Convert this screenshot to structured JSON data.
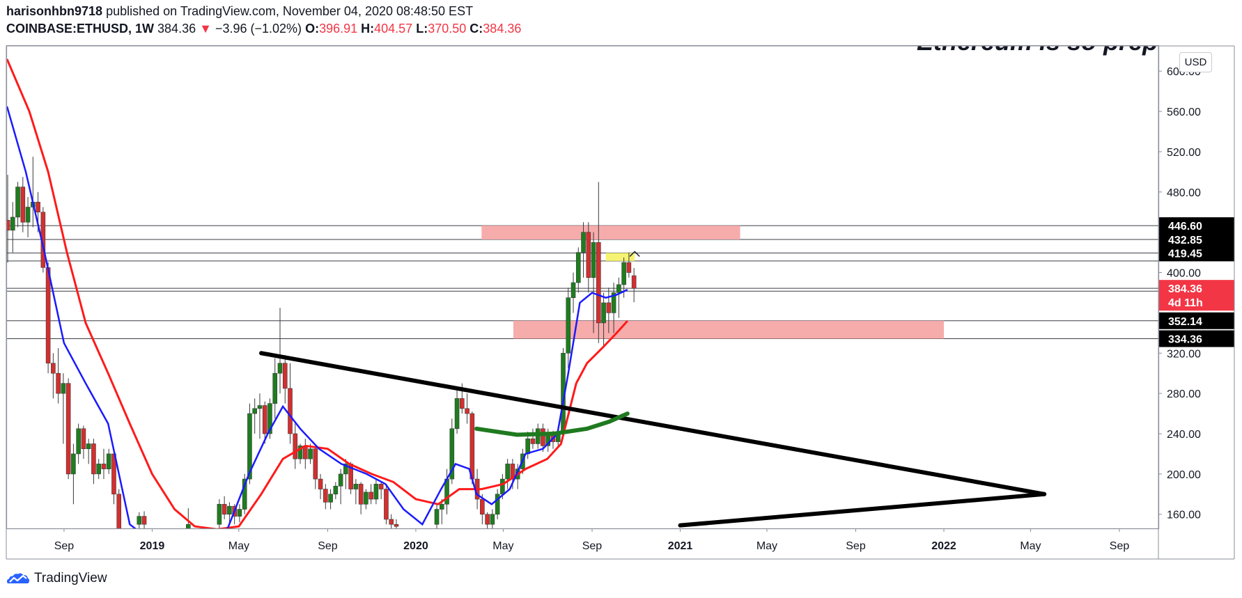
{
  "header": {
    "author": "harisonhbn9718",
    "published": "published on TradingView.com, November 04, 2020 08:48:50 EST",
    "symbol": "COINBASE:ETHUSD, 1W",
    "price": "384.36",
    "arrow": "▼",
    "change": "−3.96 (−1.02%)",
    "o_label": "O:",
    "o_val": "396.91",
    "h_label": "H:",
    "h_val": "404.57",
    "l_label": "L:",
    "l_val": "370.50",
    "c_label": "C:",
    "c_val": "384.36"
  },
  "currency_button": "USD",
  "footer": {
    "brand": "TradingView"
  },
  "colors": {
    "up": "#089981",
    "up_fill": "#1e7d1e",
    "down": "#d32f2f",
    "ema_fast": "#1a1aff",
    "ema_slow": "#ff1a1a",
    "zone": "#f7a8a8",
    "hl_yellow": "#f5f26a",
    "curve_green": "#1f7a1f"
  },
  "chart_data": {
    "type": "candlestick",
    "title": "Ethereum is so prep",
    "y_axis": {
      "range": [
        146,
        625
      ],
      "ticks": [
        "600.00",
        "560.00",
        "520.00",
        "480.00",
        "400.00",
        "320.00",
        "280.00",
        "240.00",
        "200.00",
        "160.00"
      ],
      "price_labels": [
        {
          "value": 446.6,
          "text": "446.60",
          "color": "#000000"
        },
        {
          "value": 432.85,
          "text": "432.85",
          "color": "#000000"
        },
        {
          "value": 419.45,
          "text": "419.45",
          "color": "#000000"
        },
        {
          "value": 384.36,
          "text": "384.36",
          "color": "#f23645"
        },
        {
          "value": 370.5,
          "text": "4d 11h",
          "color": "#f23645"
        },
        {
          "value": 352.14,
          "text": "352.14",
          "color": "#000000"
        },
        {
          "value": 334.36,
          "text": "334.36",
          "color": "#000000"
        }
      ],
      "horizontal_lines": [
        446.6,
        432.85,
        419.45,
        411.5,
        384.36,
        381.5,
        352.14,
        334.36
      ]
    },
    "x_axis": {
      "range": [
        "2018-06-14",
        "2022-10-25"
      ],
      "ticks": [
        {
          "label": "Sep",
          "date": "2018-09-01"
        },
        {
          "label": "2019",
          "date": "2019-01-01",
          "bold": true
        },
        {
          "label": "May",
          "date": "2019-05-01"
        },
        {
          "label": "Sep",
          "date": "2019-09-01"
        },
        {
          "label": "2020",
          "date": "2020-01-01",
          "bold": true
        },
        {
          "label": "May",
          "date": "2020-05-01"
        },
        {
          "label": "Sep",
          "date": "2020-09-01"
        },
        {
          "label": "2021",
          "date": "2021-01-01",
          "bold": true
        },
        {
          "label": "May",
          "date": "2021-05-01"
        },
        {
          "label": "Sep",
          "date": "2021-09-01"
        },
        {
          "label": "2022",
          "date": "2022-01-01",
          "bold": true
        },
        {
          "label": "May",
          "date": "2022-05-01"
        },
        {
          "label": "Sep",
          "date": "2022-09-01"
        }
      ]
    },
    "zones": [
      {
        "from": "2020-04-01",
        "to": "2021-03-25",
        "low": 432.85,
        "high": 446.6,
        "color": "zone"
      },
      {
        "from": "2020-05-15",
        "to": "2022-01-01",
        "low": 334.36,
        "high": 352.14,
        "color": "zone"
      },
      {
        "from": "2020-09-20",
        "to": "2020-10-30",
        "low": 411.5,
        "high": 419.45,
        "color": "hl_yellow"
      }
    ],
    "trendlines": [
      {
        "from": [
          "2019-06-01",
          320
        ],
        "to": [
          "2022-05-20",
          180
        ],
        "color": "#000000"
      },
      {
        "from": [
          "2021-01-01",
          149
        ],
        "to": [
          "2022-05-20",
          180
        ],
        "color": "#000000"
      }
    ],
    "curve": {
      "points": [
        [
          "2020-03-25",
          245
        ],
        [
          "2020-05-20",
          239
        ],
        [
          "2020-07-10",
          240
        ],
        [
          "2020-08-25",
          245
        ],
        [
          "2020-09-25",
          252
        ],
        [
          "2020-10-20",
          260
        ]
      ],
      "color": "curve_green"
    },
    "ema_fast": [
      [
        "2018-06-14",
        565
      ],
      [
        "2018-07-10",
        500
      ],
      [
        "2018-08-05",
        420
      ],
      [
        "2018-09-01",
        330
      ],
      [
        "2018-10-01",
        290
      ],
      [
        "2018-11-01",
        250
      ],
      [
        "2018-12-01",
        150
      ],
      [
        "2019-01-15",
        125
      ],
      [
        "2019-03-01",
        130
      ],
      [
        "2019-04-15",
        145
      ],
      [
        "2019-05-15",
        200
      ],
      [
        "2019-06-10",
        240
      ],
      [
        "2019-07-01",
        267
      ],
      [
        "2019-07-25",
        245
      ],
      [
        "2019-08-20",
        225
      ],
      [
        "2019-09-20",
        210
      ],
      [
        "2019-10-25",
        200
      ],
      [
        "2019-11-20",
        190
      ],
      [
        "2019-12-15",
        165
      ],
      [
        "2020-01-10",
        150
      ],
      [
        "2020-02-05",
        185
      ],
      [
        "2020-02-25",
        210
      ],
      [
        "2020-03-15",
        205
      ],
      [
        "2020-03-25",
        180
      ],
      [
        "2020-04-15",
        170
      ],
      [
        "2020-05-10",
        185
      ],
      [
        "2020-06-01",
        220
      ],
      [
        "2020-06-25",
        225
      ],
      [
        "2020-07-15",
        240
      ],
      [
        "2020-07-30",
        300
      ],
      [
        "2020-08-15",
        370
      ],
      [
        "2020-09-01",
        380
      ],
      [
        "2020-09-20",
        375
      ],
      [
        "2020-10-05",
        378
      ],
      [
        "2020-10-20",
        383
      ]
    ],
    "ema_slow": [
      [
        "2018-06-14",
        612
      ],
      [
        "2018-07-15",
        560
      ],
      [
        "2018-08-10",
        500
      ],
      [
        "2018-09-05",
        420
      ],
      [
        "2018-10-01",
        350
      ],
      [
        "2018-11-01",
        300
      ],
      [
        "2018-12-01",
        250
      ],
      [
        "2019-01-01",
        200
      ],
      [
        "2019-02-01",
        165
      ],
      [
        "2019-03-01",
        148
      ],
      [
        "2019-04-01",
        145
      ],
      [
        "2019-05-01",
        148
      ],
      [
        "2019-06-01",
        180
      ],
      [
        "2019-07-01",
        215
      ],
      [
        "2019-08-01",
        228
      ],
      [
        "2019-09-01",
        225
      ],
      [
        "2019-10-01",
        210
      ],
      [
        "2019-11-01",
        200
      ],
      [
        "2019-12-01",
        192
      ],
      [
        "2020-01-01",
        175
      ],
      [
        "2020-02-01",
        170
      ],
      [
        "2020-03-01",
        185
      ],
      [
        "2020-04-01",
        185
      ],
      [
        "2020-05-01",
        190
      ],
      [
        "2020-06-01",
        205
      ],
      [
        "2020-07-01",
        215
      ],
      [
        "2020-07-20",
        230
      ],
      [
        "2020-08-10",
        290
      ],
      [
        "2020-08-25",
        310
      ],
      [
        "2020-09-15",
        325
      ],
      [
        "2020-10-05",
        340
      ],
      [
        "2020-10-20",
        352
      ]
    ],
    "candles": [
      {
        "t": "2018-06-15",
        "o": 452,
        "h": 497,
        "l": 410,
        "c": 442
      },
      {
        "t": "2018-06-22",
        "o": 442,
        "h": 470,
        "l": 420,
        "c": 455
      },
      {
        "t": "2018-06-29",
        "o": 455,
        "h": 490,
        "l": 445,
        "c": 485
      },
      {
        "t": "2018-07-06",
        "o": 485,
        "h": 495,
        "l": 440,
        "c": 450
      },
      {
        "t": "2018-07-13",
        "o": 450,
        "h": 475,
        "l": 435,
        "c": 465
      },
      {
        "t": "2018-07-20",
        "o": 465,
        "h": 515,
        "l": 445,
        "c": 470
      },
      {
        "t": "2018-07-27",
        "o": 470,
        "h": 480,
        "l": 440,
        "c": 460
      },
      {
        "t": "2018-08-03",
        "o": 460,
        "h": 465,
        "l": 400,
        "c": 405
      },
      {
        "t": "2018-08-10",
        "o": 405,
        "h": 410,
        "l": 300,
        "c": 310
      },
      {
        "t": "2018-08-17",
        "o": 310,
        "h": 320,
        "l": 275,
        "c": 300
      },
      {
        "t": "2018-08-24",
        "o": 300,
        "h": 325,
        "l": 270,
        "c": 280
      },
      {
        "t": "2018-08-31",
        "o": 280,
        "h": 300,
        "l": 230,
        "c": 290
      },
      {
        "t": "2018-09-07",
        "o": 290,
        "h": 295,
        "l": 195,
        "c": 200
      },
      {
        "t": "2018-09-14",
        "o": 200,
        "h": 230,
        "l": 170,
        "c": 220
      },
      {
        "t": "2018-09-21",
        "o": 220,
        "h": 250,
        "l": 210,
        "c": 245
      },
      {
        "t": "2018-09-28",
        "o": 245,
        "h": 248,
        "l": 215,
        "c": 225
      },
      {
        "t": "2018-10-05",
        "o": 225,
        "h": 235,
        "l": 210,
        "c": 230
      },
      {
        "t": "2018-10-12",
        "o": 230,
        "h": 235,
        "l": 190,
        "c": 200
      },
      {
        "t": "2018-10-19",
        "o": 200,
        "h": 215,
        "l": 195,
        "c": 210
      },
      {
        "t": "2018-10-26",
        "o": 210,
        "h": 225,
        "l": 195,
        "c": 205
      },
      {
        "t": "2018-11-02",
        "o": 205,
        "h": 225,
        "l": 200,
        "c": 220
      },
      {
        "t": "2018-11-09",
        "o": 220,
        "h": 222,
        "l": 170,
        "c": 180
      },
      {
        "t": "2018-11-16",
        "o": 180,
        "h": 185,
        "l": 130,
        "c": 140
      },
      {
        "t": "2018-12-14",
        "o": 150,
        "h": 162,
        "l": 140,
        "c": 158
      },
      {
        "t": "2018-12-21",
        "o": 158,
        "h": 163,
        "l": 145,
        "c": 150
      },
      {
        "t": "2019-02-20",
        "o": 135,
        "h": 166,
        "l": 130,
        "c": 150
      },
      {
        "t": "2019-04-04",
        "o": 150,
        "h": 175,
        "l": 145,
        "c": 170
      },
      {
        "t": "2019-04-11",
        "o": 170,
        "h": 178,
        "l": 155,
        "c": 160
      },
      {
        "t": "2019-04-18",
        "o": 160,
        "h": 172,
        "l": 150,
        "c": 168
      },
      {
        "t": "2019-04-25",
        "o": 168,
        "h": 170,
        "l": 150,
        "c": 158
      },
      {
        "t": "2019-05-02",
        "o": 158,
        "h": 170,
        "l": 152,
        "c": 165
      },
      {
        "t": "2019-05-09",
        "o": 165,
        "h": 200,
        "l": 160,
        "c": 195
      },
      {
        "t": "2019-05-16",
        "o": 195,
        "h": 270,
        "l": 190,
        "c": 260
      },
      {
        "t": "2019-05-23",
        "o": 260,
        "h": 275,
        "l": 240,
        "c": 265
      },
      {
        "t": "2019-05-30",
        "o": 265,
        "h": 280,
        "l": 235,
        "c": 268
      },
      {
        "t": "2019-06-06",
        "o": 268,
        "h": 272,
        "l": 230,
        "c": 240
      },
      {
        "t": "2019-06-13",
        "o": 240,
        "h": 275,
        "l": 235,
        "c": 270
      },
      {
        "t": "2019-06-20",
        "o": 270,
        "h": 315,
        "l": 255,
        "c": 300
      },
      {
        "t": "2019-06-27",
        "o": 300,
        "h": 365,
        "l": 280,
        "c": 310
      },
      {
        "t": "2019-07-04",
        "o": 310,
        "h": 318,
        "l": 270,
        "c": 285
      },
      {
        "t": "2019-07-11",
        "o": 285,
        "h": 310,
        "l": 230,
        "c": 240
      },
      {
        "t": "2019-07-18",
        "o": 240,
        "h": 250,
        "l": 205,
        "c": 215
      },
      {
        "t": "2019-07-25",
        "o": 215,
        "h": 230,
        "l": 210,
        "c": 228
      },
      {
        "t": "2019-08-01",
        "o": 228,
        "h": 235,
        "l": 205,
        "c": 215
      },
      {
        "t": "2019-08-08",
        "o": 215,
        "h": 230,
        "l": 210,
        "c": 225
      },
      {
        "t": "2019-08-15",
        "o": 225,
        "h": 228,
        "l": 185,
        "c": 195
      },
      {
        "t": "2019-08-22",
        "o": 195,
        "h": 200,
        "l": 175,
        "c": 185
      },
      {
        "t": "2019-08-29",
        "o": 185,
        "h": 190,
        "l": 165,
        "c": 172
      },
      {
        "t": "2019-09-05",
        "o": 172,
        "h": 185,
        "l": 165,
        "c": 180
      },
      {
        "t": "2019-09-12",
        "o": 180,
        "h": 192,
        "l": 175,
        "c": 188
      },
      {
        "t": "2019-09-19",
        "o": 188,
        "h": 205,
        "l": 170,
        "c": 200
      },
      {
        "t": "2019-09-26",
        "o": 200,
        "h": 215,
        "l": 185,
        "c": 210
      },
      {
        "t": "2019-10-03",
        "o": 210,
        "h": 212,
        "l": 180,
        "c": 185
      },
      {
        "t": "2019-10-10",
        "o": 185,
        "h": 195,
        "l": 170,
        "c": 190
      },
      {
        "t": "2019-10-17",
        "o": 190,
        "h": 192,
        "l": 160,
        "c": 170
      },
      {
        "t": "2019-10-24",
        "o": 170,
        "h": 185,
        "l": 165,
        "c": 182
      },
      {
        "t": "2019-10-31",
        "o": 182,
        "h": 190,
        "l": 170,
        "c": 175
      },
      {
        "t": "2019-11-07",
        "o": 175,
        "h": 195,
        "l": 170,
        "c": 190
      },
      {
        "t": "2019-11-14",
        "o": 190,
        "h": 192,
        "l": 175,
        "c": 185
      },
      {
        "t": "2019-11-21",
        "o": 185,
        "h": 190,
        "l": 150,
        "c": 155
      },
      {
        "t": "2019-11-28",
        "o": 155,
        "h": 160,
        "l": 145,
        "c": 150
      },
      {
        "t": "2019-12-05",
        "o": 150,
        "h": 155,
        "l": 140,
        "c": 148
      },
      {
        "t": "2020-01-30",
        "o": 150,
        "h": 170,
        "l": 145,
        "c": 165
      },
      {
        "t": "2020-02-06",
        "o": 165,
        "h": 175,
        "l": 150,
        "c": 170
      },
      {
        "t": "2020-02-13",
        "o": 170,
        "h": 205,
        "l": 160,
        "c": 195
      },
      {
        "t": "2020-02-20",
        "o": 195,
        "h": 255,
        "l": 190,
        "c": 245
      },
      {
        "t": "2020-02-27",
        "o": 245,
        "h": 285,
        "l": 240,
        "c": 275
      },
      {
        "t": "2020-03-05",
        "o": 275,
        "h": 290,
        "l": 260,
        "c": 265
      },
      {
        "t": "2020-03-12",
        "o": 265,
        "h": 280,
        "l": 250,
        "c": 260
      },
      {
        "t": "2020-03-19",
        "o": 260,
        "h": 262,
        "l": 190,
        "c": 195
      },
      {
        "t": "2020-03-26",
        "o": 195,
        "h": 205,
        "l": 165,
        "c": 175
      },
      {
        "t": "2020-04-02",
        "o": 175,
        "h": 180,
        "l": 150,
        "c": 160
      },
      {
        "t": "2020-04-09",
        "o": 160,
        "h": 162,
        "l": 140,
        "c": 150
      },
      {
        "t": "2020-04-16",
        "o": 150,
        "h": 165,
        "l": 140,
        "c": 160
      },
      {
        "t": "2020-04-23",
        "o": 160,
        "h": 185,
        "l": 155,
        "c": 180
      },
      {
        "t": "2020-04-30",
        "o": 180,
        "h": 200,
        "l": 175,
        "c": 195
      },
      {
        "t": "2020-05-07",
        "o": 195,
        "h": 215,
        "l": 185,
        "c": 210
      },
      {
        "t": "2020-05-14",
        "o": 210,
        "h": 215,
        "l": 185,
        "c": 195
      },
      {
        "t": "2020-05-21",
        "o": 195,
        "h": 210,
        "l": 185,
        "c": 205
      },
      {
        "t": "2020-05-28",
        "o": 205,
        "h": 225,
        "l": 200,
        "c": 220
      },
      {
        "t": "2020-06-04",
        "o": 220,
        "h": 242,
        "l": 215,
        "c": 235
      },
      {
        "t": "2020-06-11",
        "o": 235,
        "h": 245,
        "l": 225,
        "c": 230
      },
      {
        "t": "2020-06-18",
        "o": 230,
        "h": 250,
        "l": 225,
        "c": 245
      },
      {
        "t": "2020-06-25",
        "o": 245,
        "h": 250,
        "l": 222,
        "c": 228
      },
      {
        "t": "2020-07-02",
        "o": 228,
        "h": 245,
        "l": 222,
        "c": 240
      },
      {
        "t": "2020-07-09",
        "o": 240,
        "h": 243,
        "l": 225,
        "c": 232
      },
      {
        "t": "2020-07-16",
        "o": 232,
        "h": 245,
        "l": 228,
        "c": 240
      },
      {
        "t": "2020-07-23",
        "o": 240,
        "h": 325,
        "l": 235,
        "c": 320
      },
      {
        "t": "2020-07-30",
        "o": 320,
        "h": 385,
        "l": 305,
        "c": 375
      },
      {
        "t": "2020-08-06",
        "o": 375,
        "h": 400,
        "l": 360,
        "c": 390
      },
      {
        "t": "2020-08-13",
        "o": 390,
        "h": 425,
        "l": 380,
        "c": 420
      },
      {
        "t": "2020-08-20",
        "o": 420,
        "h": 450,
        "l": 395,
        "c": 440
      },
      {
        "t": "2020-08-27",
        "o": 440,
        "h": 450,
        "l": 380,
        "c": 395
      },
      {
        "t": "2020-09-03",
        "o": 395,
        "h": 440,
        "l": 340,
        "c": 430
      },
      {
        "t": "2020-09-10",
        "o": 430,
        "h": 490,
        "l": 330,
        "c": 350
      },
      {
        "t": "2020-09-17",
        "o": 350,
        "h": 380,
        "l": 325,
        "c": 370
      },
      {
        "t": "2020-09-24",
        "o": 370,
        "h": 385,
        "l": 340,
        "c": 360
      },
      {
        "t": "2020-10-01",
        "o": 360,
        "h": 390,
        "l": 340,
        "c": 380
      },
      {
        "t": "2020-10-08",
        "o": 380,
        "h": 395,
        "l": 355,
        "c": 388
      },
      {
        "t": "2020-10-15",
        "o": 388,
        "h": 415,
        "l": 375,
        "c": 410
      },
      {
        "t": "2020-10-22",
        "o": 410,
        "h": 420,
        "l": 395,
        "c": 400
      },
      {
        "t": "2020-10-29",
        "o": 396.91,
        "h": 404.57,
        "l": 370.5,
        "c": 384.36
      }
    ]
  }
}
